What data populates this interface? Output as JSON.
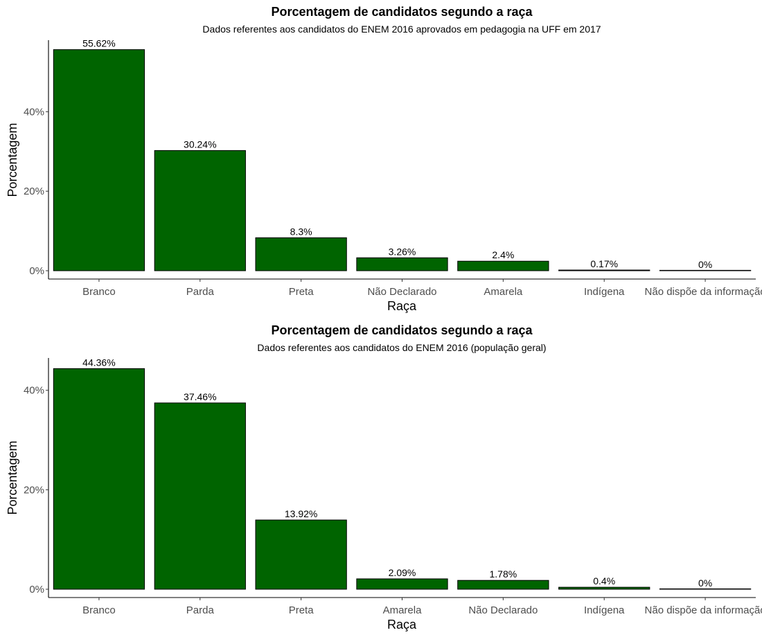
{
  "chart_data": [
    {
      "type": "bar",
      "title": "Porcentagem de candidatos segundo a raça",
      "subtitle": "Dados referentes aos candidatos do ENEM 2016 aprovados em pedagogia na UFF em 2017",
      "xlabel": "Raça",
      "ylabel": "Porcentagem",
      "categories": [
        "Branco",
        "Parda",
        "Preta",
        "Não Declarado",
        "Amarela",
        "Indígena",
        "Não dispõe da informação"
      ],
      "values": [
        55.62,
        30.24,
        8.3,
        3.26,
        2.4,
        0.17,
        0
      ],
      "data_labels": [
        "55.62%",
        "30.24%",
        "8.3%",
        "3.26%",
        "2.4%",
        "0.17%",
        "0%"
      ],
      "yticks": [
        0,
        20,
        40
      ],
      "ytick_labels": [
        "0%",
        "20%",
        "40%"
      ],
      "ylim": [
        0,
        58
      ],
      "bar_color": "#006400",
      "grid": false
    },
    {
      "type": "bar",
      "title": "Porcentagem de candidatos segundo a raça",
      "subtitle": "Dados referentes aos candidatos do ENEM 2016 (população geral)",
      "xlabel": "Raça",
      "ylabel": "Porcentagem",
      "categories": [
        "Branco",
        "Parda",
        "Preta",
        "Amarela",
        "Não Declarado",
        "Indígena",
        "Não dispõe da informação"
      ],
      "values": [
        44.36,
        37.46,
        13.92,
        2.09,
        1.78,
        0.4,
        0
      ],
      "data_labels": [
        "44.36%",
        "37.46%",
        "13.92%",
        "2.09%",
        "1.78%",
        "0.4%",
        "0%"
      ],
      "yticks": [
        0,
        20,
        40
      ],
      "ytick_labels": [
        "0%",
        "20%",
        "40%"
      ],
      "ylim": [
        0,
        46.5
      ],
      "bar_color": "#006400",
      "grid": false
    }
  ]
}
